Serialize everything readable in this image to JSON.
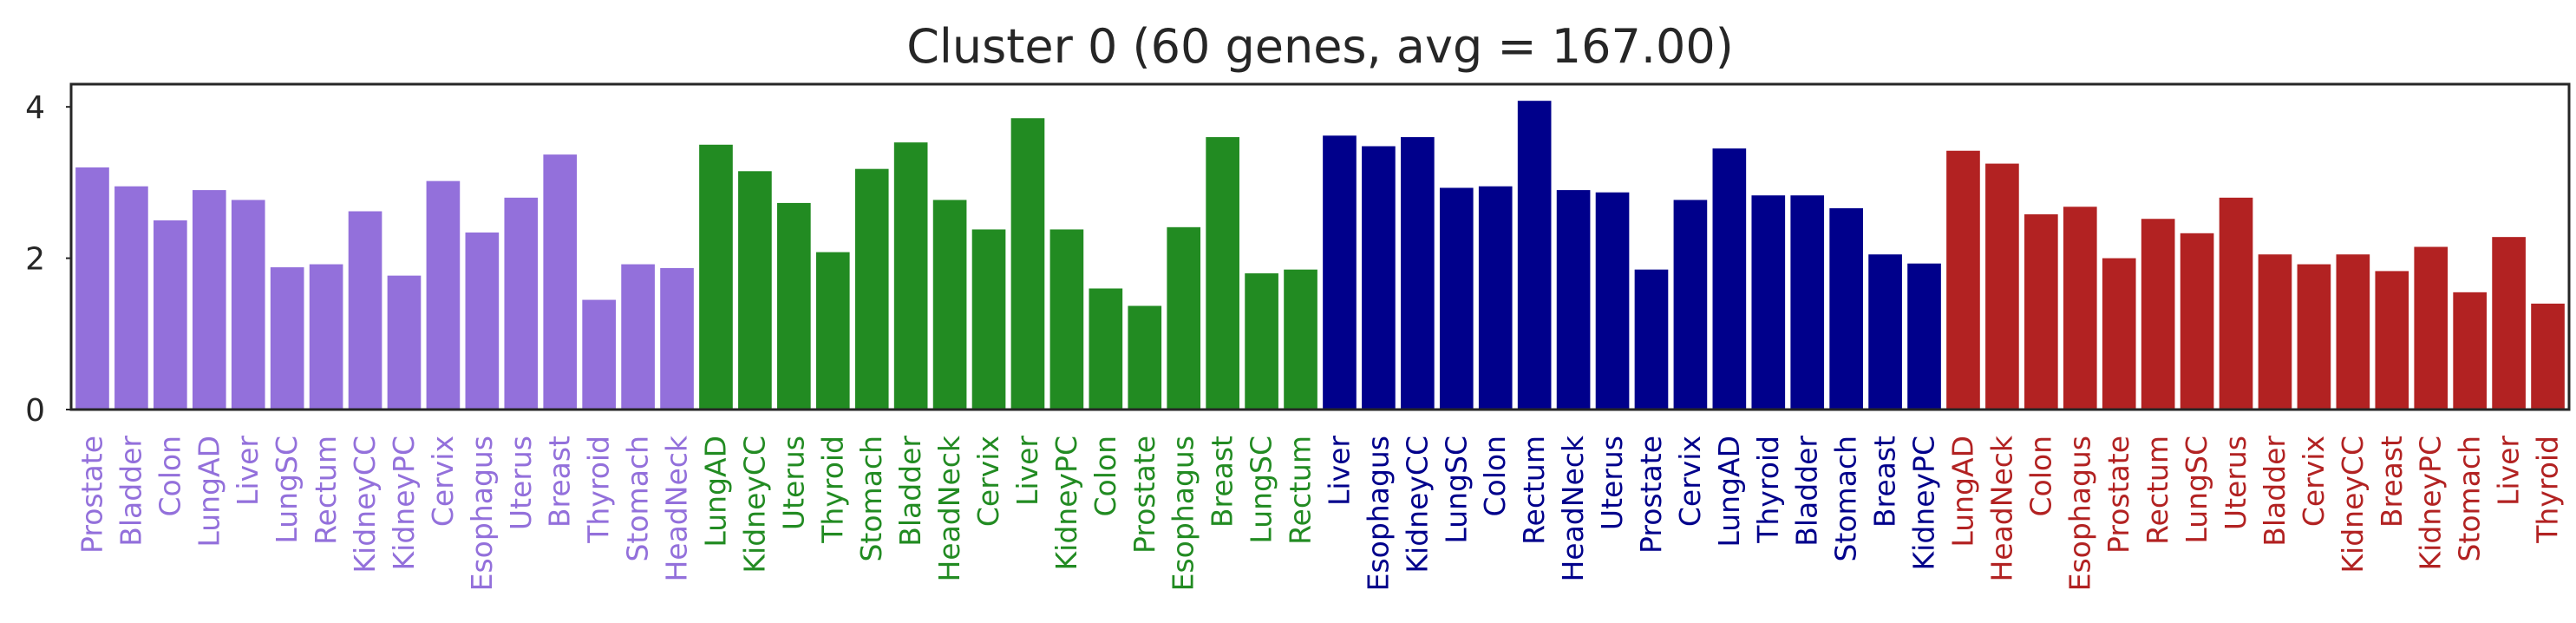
{
  "chart_data": {
    "type": "bar",
    "title": "Cluster 0 (60 genes,  avg = 167.00)",
    "xlabel": "",
    "ylabel": "",
    "ylim": [
      0,
      4.3
    ],
    "yticks": [
      0,
      2,
      4
    ],
    "grid": false,
    "legend": "none",
    "groups": [
      {
        "color": "#9370DB",
        "categories": [
          "Prostate",
          "Bladder",
          "Colon",
          "LungAD",
          "Liver",
          "LungSC",
          "Rectum",
          "KidneyCC",
          "KidneyPC",
          "Cervix",
          "Esophagus",
          "Uterus",
          "Breast",
          "Thyroid",
          "Stomach",
          "HeadNeck"
        ],
        "values": [
          3.2,
          2.95,
          2.5,
          2.9,
          2.77,
          1.88,
          1.92,
          2.62,
          1.77,
          3.02,
          2.34,
          2.8,
          3.37,
          1.45,
          1.92,
          1.87
        ]
      },
      {
        "color": "#228B22",
        "categories": [
          "LungAD",
          "KidneyCC",
          "Uterus",
          "Thyroid",
          "Stomach",
          "Bladder",
          "HeadNeck",
          "Cervix",
          "Liver",
          "KidneyPC",
          "Colon",
          "Prostate",
          "Esophagus",
          "Breast",
          "LungSC",
          "Rectum"
        ],
        "values": [
          3.5,
          3.15,
          2.73,
          2.08,
          3.18,
          3.53,
          2.77,
          2.38,
          3.85,
          2.38,
          1.6,
          1.37,
          2.41,
          3.6,
          1.8,
          1.85
        ]
      },
      {
        "color": "#00008B",
        "categories": [
          "Liver",
          "Esophagus",
          "KidneyCC",
          "LungSC",
          "Colon",
          "Rectum",
          "HeadNeck",
          "Uterus",
          "Prostate",
          "Cervix",
          "LungAD",
          "Thyroid",
          "Bladder",
          "Stomach",
          "Breast",
          "KidneyPC"
        ],
        "values": [
          3.62,
          3.48,
          3.6,
          2.93,
          2.95,
          4.08,
          2.9,
          2.87,
          1.85,
          2.77,
          3.45,
          2.83,
          2.83,
          2.66,
          2.05,
          1.93
        ]
      },
      {
        "color": "#B22222",
        "categories": [
          "LungAD",
          "HeadNeck",
          "Colon",
          "Esophagus",
          "Prostate",
          "Rectum",
          "LungSC",
          "Uterus",
          "Bladder",
          "Cervix",
          "KidneyCC",
          "Breast",
          "KidneyPC",
          "Stomach",
          "Liver",
          "Thyroid"
        ],
        "values": [
          3.42,
          3.25,
          2.58,
          2.68,
          2.0,
          2.52,
          2.33,
          2.8,
          2.05,
          1.92,
          2.05,
          1.83,
          2.15,
          1.55,
          2.28,
          1.4
        ]
      }
    ]
  }
}
